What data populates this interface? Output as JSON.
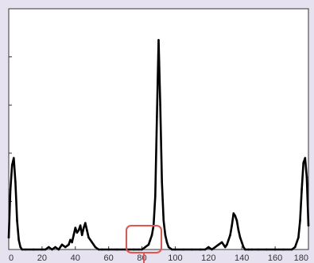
{
  "colors": {
    "page_background": "#e6e2f0",
    "plot_background": "#ffffff",
    "axis": "#333333",
    "line": "#000000",
    "highlight": "#e8534d"
  },
  "chart_data": {
    "type": "line",
    "xlim": [
      0,
      180
    ],
    "ylim": [
      0,
      100
    ],
    "grid": false,
    "x_tick_labels": [
      "0",
      "20",
      "40",
      "60",
      "80",
      "100",
      "120",
      "140",
      "160",
      "180"
    ],
    "series": [
      {
        "x": [
          0,
          1,
          2,
          3,
          4,
          5,
          6,
          7,
          8,
          10,
          15,
          20,
          22,
          24,
          26,
          28,
          30,
          32,
          34,
          36,
          37,
          38,
          39,
          40,
          41,
          42,
          43,
          44,
          45,
          46,
          47,
          48,
          50,
          52,
          54,
          56,
          60,
          65,
          70,
          75,
          78,
          80,
          82,
          84,
          85,
          86,
          87,
          88,
          89,
          90,
          91,
          92,
          93,
          94,
          95,
          96,
          98,
          100,
          105,
          110,
          115,
          118,
          120,
          122,
          124,
          126,
          128,
          130,
          131,
          132,
          133,
          134,
          135,
          136,
          137,
          138,
          139,
          140,
          141,
          142,
          144,
          146,
          150,
          155,
          160,
          165,
          170,
          172,
          174,
          175,
          176,
          177,
          178,
          179,
          180
        ],
        "y": [
          5,
          25,
          35,
          38,
          28,
          12,
          4,
          1,
          0,
          0,
          0,
          0,
          0,
          1,
          0,
          1,
          0,
          2,
          1,
          2,
          4,
          3,
          6,
          9,
          7,
          8,
          10,
          6,
          9,
          11,
          8,
          5,
          3,
          1,
          0,
          0,
          0,
          0,
          0,
          0,
          0,
          0,
          1,
          2,
          4,
          6,
          10,
          22,
          55,
          87,
          60,
          28,
          12,
          6,
          3,
          1,
          0,
          0,
          0,
          0,
          0,
          0,
          1,
          0,
          1,
          2,
          3,
          1,
          2,
          4,
          6,
          10,
          15,
          14,
          12,
          8,
          5,
          3,
          1,
          0,
          0,
          0,
          0,
          0,
          0,
          0,
          0,
          1,
          5,
          12,
          25,
          36,
          38,
          30,
          10
        ]
      }
    ]
  }
}
